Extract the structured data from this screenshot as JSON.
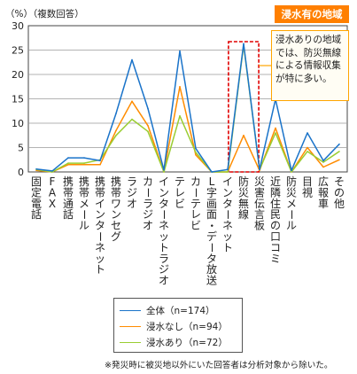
{
  "y_unit_label": "（%）（複数回答）",
  "badge_text": "浸水有の地域",
  "callout_text": "浸水ありの地域では、防災無線による情報収集が特に多い。",
  "footnote": "※発災時に被災地以外にいた回答者は分析対象から除いた。",
  "colors": {
    "all": "#1a73c9",
    "flood_no": "#ff8c00",
    "flood_yes": "#9acd32",
    "highlight": "#e00000",
    "badge": "#ff7f00"
  },
  "chart_data": {
    "type": "line",
    "title": "",
    "xlabel": "",
    "ylabel": "（%）（複数回答）",
    "ylim": [
      0,
      30
    ],
    "yticks": [
      0,
      5,
      10,
      15,
      20,
      25,
      30
    ],
    "grid": true,
    "legend_position": "bottom-center",
    "highlight_category": "防災無線",
    "categories": [
      "固定電話",
      "FAX",
      "携帯通話",
      "携帯メール",
      "携帯インターネット",
      "携帯ワンセグ",
      "ラジオ",
      "カーラジオ",
      "インターネットラジオ",
      "テレビ",
      "カーテレビ",
      "L字画面・データ放送",
      "インターネット",
      "防災無線",
      "災害伝言板",
      "近隣住民の口コミ",
      "防災メール",
      "目視",
      "広報車",
      "その他"
    ],
    "series": [
      {
        "name": "全体（n=174）",
        "color": "#1a73c9",
        "values": [
          0.6,
          0.2,
          2.9,
          2.9,
          2.3,
          12.0,
          23.0,
          13.0,
          0.4,
          24.8,
          4.8,
          0.0,
          0.5,
          26.3,
          0.5,
          14.9,
          0.3,
          8.0,
          2.3,
          5.7
        ]
      },
      {
        "name": "浸水なし（n=94）",
        "color": "#ff8c00",
        "values": [
          0.3,
          0.0,
          1.5,
          1.5,
          1.5,
          8.5,
          14.5,
          9.5,
          0.0,
          17.5,
          3.5,
          0.0,
          0.0,
          7.5,
          0.3,
          9.0,
          0.0,
          5.0,
          1.0,
          2.5
        ]
      },
      {
        "name": "浸水あり（n=72）",
        "color": "#9acd32",
        "values": [
          0.5,
          0.0,
          1.8,
          1.8,
          2.5,
          7.5,
          10.8,
          8.3,
          0.0,
          11.5,
          4.0,
          0.0,
          0.0,
          26.0,
          0.5,
          8.0,
          0.0,
          4.2,
          2.0,
          4.2
        ]
      }
    ]
  }
}
